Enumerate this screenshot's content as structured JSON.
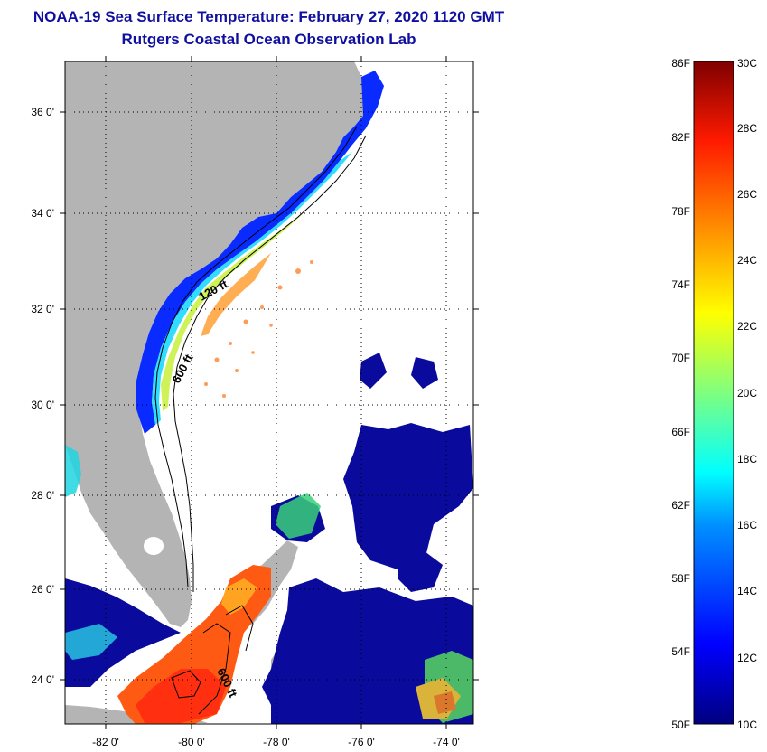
{
  "title": {
    "line1": "NOAA-19 Sea Surface Temperature:  February 27, 2020 1120 GMT",
    "line2": "Rutgers Coastal Ocean Observation Lab"
  },
  "map": {
    "lat_labels": [
      "36 0'",
      "34 0'",
      "32 0'",
      "30 0'",
      "28 0'",
      "26 0'",
      "24 0'"
    ],
    "lon_labels": [
      "-82 0'",
      "-80 0'",
      "-78 0'",
      "-76 0'",
      "-74 0'"
    ],
    "contour_labels": [
      "120 ft",
      "600 ft",
      "600 ft"
    ],
    "colors": {
      "land": "#b4b4b4",
      "cloud": "#ffffff"
    }
  },
  "colorbar": {
    "f_labels": [
      "86F",
      "82F",
      "78F",
      "74F",
      "70F",
      "66F",
      "62F",
      "58F",
      "54F",
      "50F"
    ],
    "c_labels": [
      "30C",
      "28C",
      "26C",
      "24C",
      "22C",
      "20C",
      "18C",
      "16C",
      "14C",
      "12C",
      "10C"
    ],
    "range_c": [
      10,
      30
    ],
    "range_f": [
      50,
      86
    ]
  }
}
